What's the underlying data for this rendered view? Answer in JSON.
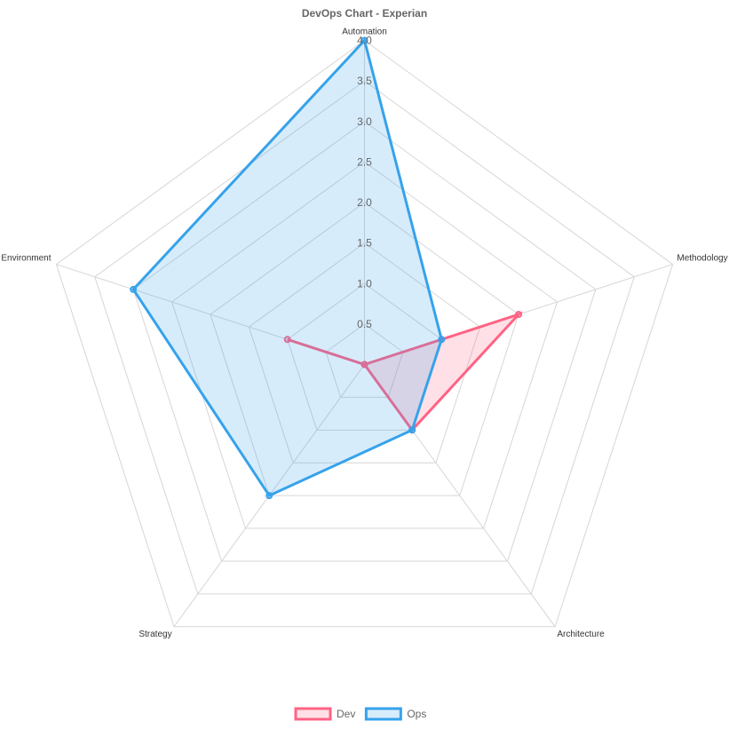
{
  "chart_data": {
    "type": "radar",
    "title": "DevOps Chart - Experian",
    "axes": [
      "Automation",
      "Methodology",
      "Architecture",
      "Strategy",
      "Environment"
    ],
    "scale": {
      "min": 0,
      "max": 4,
      "step": 0.5,
      "grid": true
    },
    "ticks": [
      "0.5",
      "1.0",
      "1.5",
      "2.0",
      "2.5",
      "3.0",
      "3.5",
      "4.0"
    ],
    "series": [
      {
        "name": "Dev",
        "values": [
          0,
          2,
          1,
          0,
          1
        ],
        "color": "#ff6384",
        "fill": "rgba(255,99,132,0.2)"
      },
      {
        "name": "Ops",
        "values": [
          4,
          1,
          1,
          2,
          3
        ],
        "color": "#36a2eb",
        "fill": "rgba(54,162,235,0.2)"
      }
    ],
    "legend": "bottom"
  }
}
